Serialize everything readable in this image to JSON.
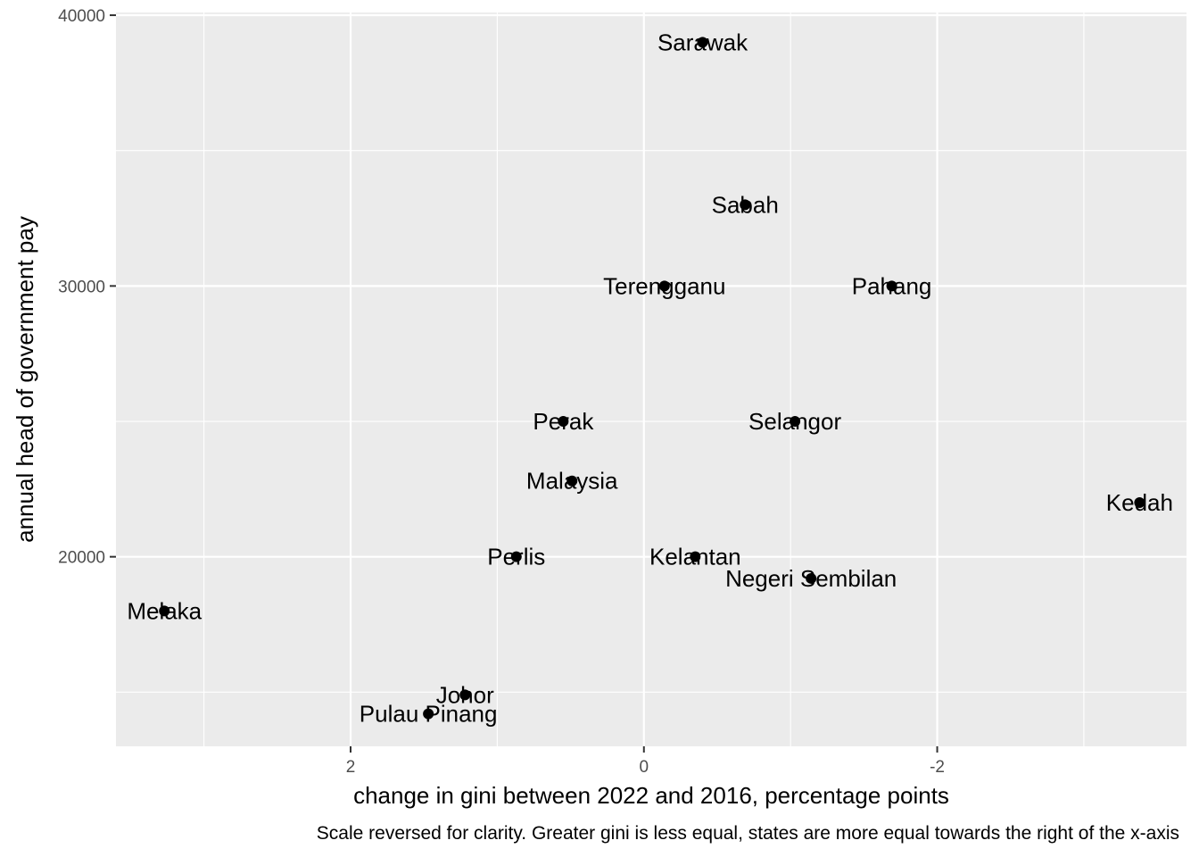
{
  "chart_data": {
    "type": "scatter",
    "title": "",
    "xlabel": "change in gini between 2022 and 2016, percentage points",
    "ylabel": "annual head of government pay",
    "caption": "Scale reversed for clarity. Greater gini is less equal, states are more equal towards the right of the x-axis",
    "x_reversed": true,
    "xlim": [
      3.6,
      -3.7
    ],
    "ylim": [
      13000,
      40100
    ],
    "x_ticks": [
      2,
      0,
      -2
    ],
    "x_tick_labels": [
      "2",
      "0",
      "-2"
    ],
    "y_ticks": [
      20000,
      30000,
      40000
    ],
    "y_tick_labels": [
      "20000",
      "30000",
      "40000"
    ],
    "grid": true,
    "panel_background": "#ebebeb",
    "grid_color": "#ffffff",
    "point_color": "#000000",
    "points": [
      {
        "label": "Sarawak",
        "x": -0.4,
        "y": 39000
      },
      {
        "label": "Sabah",
        "x": -0.69,
        "y": 33000
      },
      {
        "label": "Terengganu",
        "x": -0.14,
        "y": 30000
      },
      {
        "label": "Pahang",
        "x": -1.69,
        "y": 30000
      },
      {
        "label": "Perak",
        "x": 0.55,
        "y": 25000
      },
      {
        "label": "Selangor",
        "x": -1.03,
        "y": 25000
      },
      {
        "label": "Malaysia",
        "x": 0.49,
        "y": 22800
      },
      {
        "label": "Kedah",
        "x": -3.38,
        "y": 22000
      },
      {
        "label": "Perlis",
        "x": 0.87,
        "y": 20000
      },
      {
        "label": "Kelantan",
        "x": -0.35,
        "y": 20000
      },
      {
        "label": "Negeri Sembilan",
        "x": -1.14,
        "y": 19200
      },
      {
        "label": "Melaka",
        "x": 3.27,
        "y": 18000
      },
      {
        "label": "Johor",
        "x": 1.22,
        "y": 14900
      },
      {
        "label": "Pulau Pinang",
        "x": 1.47,
        "y": 14200
      }
    ]
  }
}
